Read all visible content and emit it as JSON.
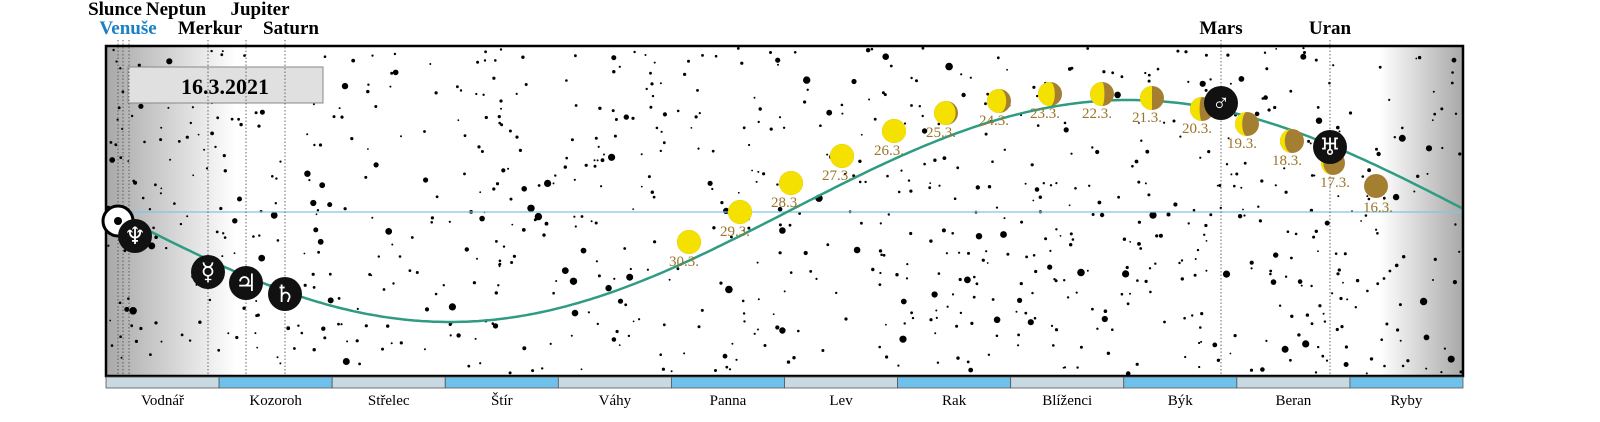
{
  "date": "16.3.2021",
  "top_labels": [
    "Slunce",
    "Neptun",
    "Jupiter",
    "Venuše",
    "Merkur",
    "Saturn",
    "Mars",
    "Uran"
  ],
  "planets": [
    {
      "symbol": "☉"
    },
    {
      "symbol": "♆"
    },
    {
      "symbol": "☿"
    },
    {
      "symbol": "♃"
    },
    {
      "symbol": "♄"
    },
    {
      "symbol": "♂"
    },
    {
      "symbol": "♅"
    }
  ],
  "moon_dates": [
    "16.3.",
    "17.3.",
    "18.3.",
    "19.3.",
    "20.3.",
    "21.3.",
    "22.3.",
    "23.3.",
    "24.3.",
    "25.3.",
    "26.3.",
    "27.3.",
    "28.3.",
    "29.3.",
    "30.3."
  ],
  "constellations": [
    "Vodnář",
    "Kozoroh",
    "Střelec",
    "Štír",
    "Váhy",
    "Panna",
    "Lev",
    "Rak",
    "Blíženci",
    "Býk",
    "Beran",
    "Ryby"
  ]
}
